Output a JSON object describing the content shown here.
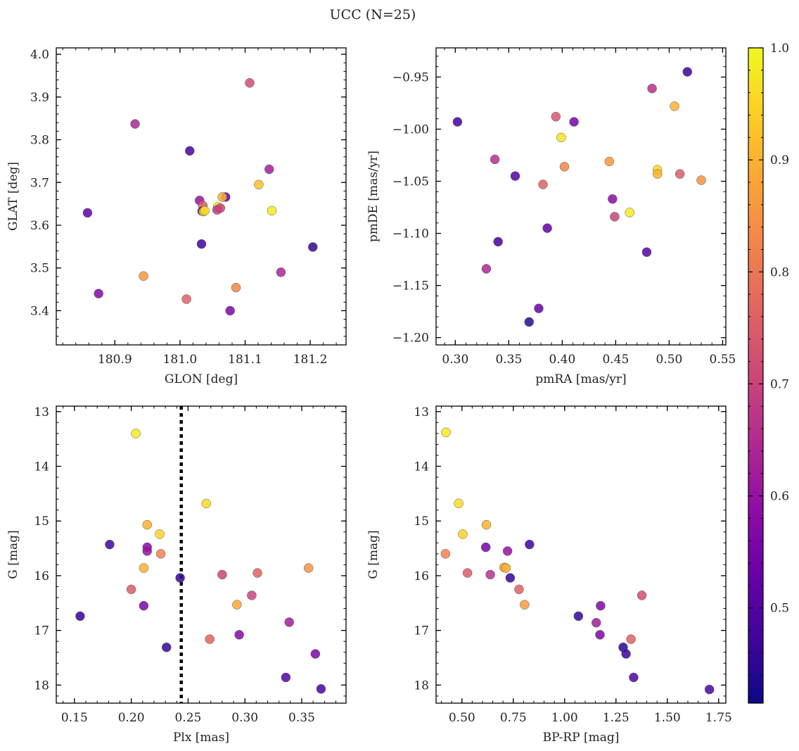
{
  "figure": {
    "title": "UCC (N=25)"
  },
  "colorbar": {
    "range": [
      0.415,
      1.0
    ],
    "ticks": [
      0.5,
      0.6,
      0.7,
      0.8,
      0.9,
      1.0
    ],
    "tick_labels": [
      "0.5",
      "0.6",
      "0.7",
      "0.8",
      "0.9",
      "1.0"
    ],
    "colormap": "plasma"
  },
  "chart_data": [
    {
      "type": "scatter",
      "id": "glon-glat",
      "xlabel": "GLON [deg]",
      "ylabel": "GLAT [deg]",
      "xlim": [
        180.81,
        181.255
      ],
      "ylim": [
        3.32,
        4.015
      ],
      "xticks": [
        180.9,
        181.0,
        181.1,
        181.2
      ],
      "xtick_labels": [
        "180.9",
        "181.0",
        "181.1",
        "181.2"
      ],
      "yticks": [
        3.4,
        3.5,
        3.6,
        3.7,
        3.8,
        3.9,
        4.0
      ],
      "ytick_labels": [
        "3.4",
        "3.5",
        "3.6",
        "3.7",
        "3.8",
        "3.9",
        "4.0"
      ],
      "x": [
        181.107,
        180.931,
        181.015,
        181.137,
        181.121,
        181.07,
        181.03,
        181.065,
        181.035,
        181.058,
        181.057,
        181.034,
        181.036,
        181.141,
        180.858,
        181.204,
        181.033,
        181.155,
        180.944,
        181.086,
        180.875,
        181.01,
        181.077,
        181.062,
        181.038
      ],
      "y": [
        3.933,
        3.837,
        3.774,
        3.731,
        3.695,
        3.666,
        3.658,
        3.666,
        3.646,
        3.643,
        3.636,
        3.633,
        3.632,
        3.634,
        3.629,
        3.549,
        3.556,
        3.49,
        3.481,
        3.454,
        3.44,
        3.427,
        3.4,
        3.64,
        3.634
      ],
      "c": [
        0.72,
        0.64,
        0.48,
        0.62,
        0.92,
        0.52,
        0.6,
        0.9,
        0.75,
        0.97,
        0.68,
        0.5,
        0.94,
        0.98,
        0.52,
        0.46,
        0.47,
        0.64,
        0.86,
        0.83,
        0.57,
        0.76,
        0.56,
        0.7,
        0.96
      ]
    },
    {
      "type": "scatter",
      "id": "pmra-pmde",
      "xlabel": "pmRA [mas/yr]",
      "ylabel": "pmDE [mas/yr]",
      "xlim": [
        0.282,
        0.553
      ],
      "ylim": [
        -1.207,
        -0.922
      ],
      "xticks": [
        0.3,
        0.35,
        0.4,
        0.45,
        0.5,
        0.55
      ],
      "xtick_labels": [
        "0.30",
        "0.35",
        "0.40",
        "0.45",
        "0.50",
        "0.55"
      ],
      "yticks": [
        -0.95,
        -1.0,
        -1.05,
        -1.1,
        -1.15,
        -1.2
      ],
      "ytick_labels": [
        "−0.95",
        "−1.00",
        "−1.05",
        "−1.10",
        "−1.15",
        "−1.20"
      ],
      "x": [
        0.517,
        0.484,
        0.505,
        0.394,
        0.302,
        0.411,
        0.399,
        0.337,
        0.444,
        0.402,
        0.489,
        0.489,
        0.51,
        0.356,
        0.53,
        0.382,
        0.447,
        0.463,
        0.449,
        0.386,
        0.34,
        0.479,
        0.329,
        0.378,
        0.369
      ],
      "y": [
        -0.945,
        -0.961,
        -0.978,
        -0.988,
        -0.993,
        -0.993,
        -1.008,
        -1.029,
        -1.031,
        -1.036,
        -1.039,
        -1.043,
        -1.043,
        -1.045,
        -1.049,
        -1.053,
        -1.067,
        -1.08,
        -1.084,
        -1.095,
        -1.108,
        -1.118,
        -1.134,
        -1.172,
        -1.185
      ],
      "c": [
        0.46,
        0.66,
        0.9,
        0.74,
        0.47,
        0.55,
        0.97,
        0.66,
        0.86,
        0.83,
        0.96,
        0.9,
        0.75,
        0.5,
        0.85,
        0.76,
        0.58,
        0.98,
        0.7,
        0.52,
        0.48,
        0.5,
        0.64,
        0.53,
        0.45
      ]
    },
    {
      "type": "scatter",
      "id": "plx-g",
      "xlabel": "Plx [mas]",
      "ylabel": "G [mag]",
      "xlim": [
        0.134,
        0.389
      ],
      "ylim": [
        18.33,
        12.9
      ],
      "y_inverted": true,
      "xticks": [
        0.15,
        0.2,
        0.25,
        0.3,
        0.35
      ],
      "xtick_labels": [
        "0.15",
        "0.20",
        "0.25",
        "0.30",
        "0.35"
      ],
      "yticks": [
        13,
        14,
        15,
        16,
        17,
        18
      ],
      "ytick_labels": [
        "13",
        "14",
        "15",
        "16",
        "17",
        "18"
      ],
      "vline": {
        "x": 0.244,
        "style": "dotted"
      },
      "x": [
        0.204,
        0.266,
        0.214,
        0.225,
        0.181,
        0.214,
        0.214,
        0.226,
        0.211,
        0.356,
        0.311,
        0.28,
        0.243,
        0.2,
        0.306,
        0.211,
        0.293,
        0.155,
        0.339,
        0.295,
        0.269,
        0.231,
        0.362,
        0.336,
        0.367
      ],
      "y": [
        13.4,
        14.68,
        15.07,
        15.24,
        15.43,
        15.48,
        15.55,
        15.6,
        15.86,
        15.86,
        15.95,
        15.98,
        16.04,
        16.25,
        16.36,
        16.55,
        16.53,
        16.74,
        16.85,
        17.08,
        17.16,
        17.31,
        17.43,
        17.86,
        18.07
      ],
      "c": [
        0.98,
        0.96,
        0.9,
        0.95,
        0.47,
        0.58,
        0.6,
        0.82,
        0.9,
        0.85,
        0.76,
        0.7,
        0.46,
        0.75,
        0.7,
        0.56,
        0.88,
        0.46,
        0.62,
        0.57,
        0.76,
        0.46,
        0.56,
        0.5,
        0.48
      ]
    },
    {
      "type": "scatter",
      "id": "bprp-g",
      "xlabel": "BP-RP [mag]",
      "ylabel": "G [mag]",
      "xlim": [
        0.374,
        1.785
      ],
      "ylim": [
        18.33,
        12.9
      ],
      "y_inverted": true,
      "xticks": [
        0.5,
        0.75,
        1.0,
        1.25,
        1.5,
        1.75
      ],
      "xtick_labels": [
        "0.50",
        "0.75",
        "1.00",
        "1.25",
        "1.50",
        "1.75"
      ],
      "yticks": [
        13,
        14,
        15,
        16,
        17,
        18
      ],
      "ytick_labels": [
        "13",
        "14",
        "15",
        "16",
        "17",
        "18"
      ],
      "x": [
        0.422,
        0.484,
        0.504,
        0.619,
        0.42,
        0.616,
        0.722,
        0.829,
        0.527,
        0.638,
        0.705,
        0.715,
        0.735,
        0.778,
        0.805,
        1.376,
        1.175,
        1.067,
        1.154,
        1.172,
        1.323,
        1.285,
        1.299,
        1.336,
        1.705
      ],
      "y": [
        13.38,
        14.68,
        15.24,
        15.07,
        15.6,
        15.48,
        15.55,
        15.43,
        15.95,
        15.98,
        15.85,
        15.86,
        16.04,
        16.25,
        16.53,
        16.36,
        16.55,
        16.74,
        16.86,
        17.08,
        17.16,
        17.31,
        17.43,
        17.86,
        18.08
      ],
      "c": [
        0.98,
        0.96,
        0.95,
        0.9,
        0.82,
        0.55,
        0.6,
        0.47,
        0.75,
        0.66,
        0.88,
        0.9,
        0.46,
        0.76,
        0.86,
        0.72,
        0.56,
        0.46,
        0.62,
        0.56,
        0.76,
        0.45,
        0.47,
        0.5,
        0.48
      ]
    }
  ]
}
